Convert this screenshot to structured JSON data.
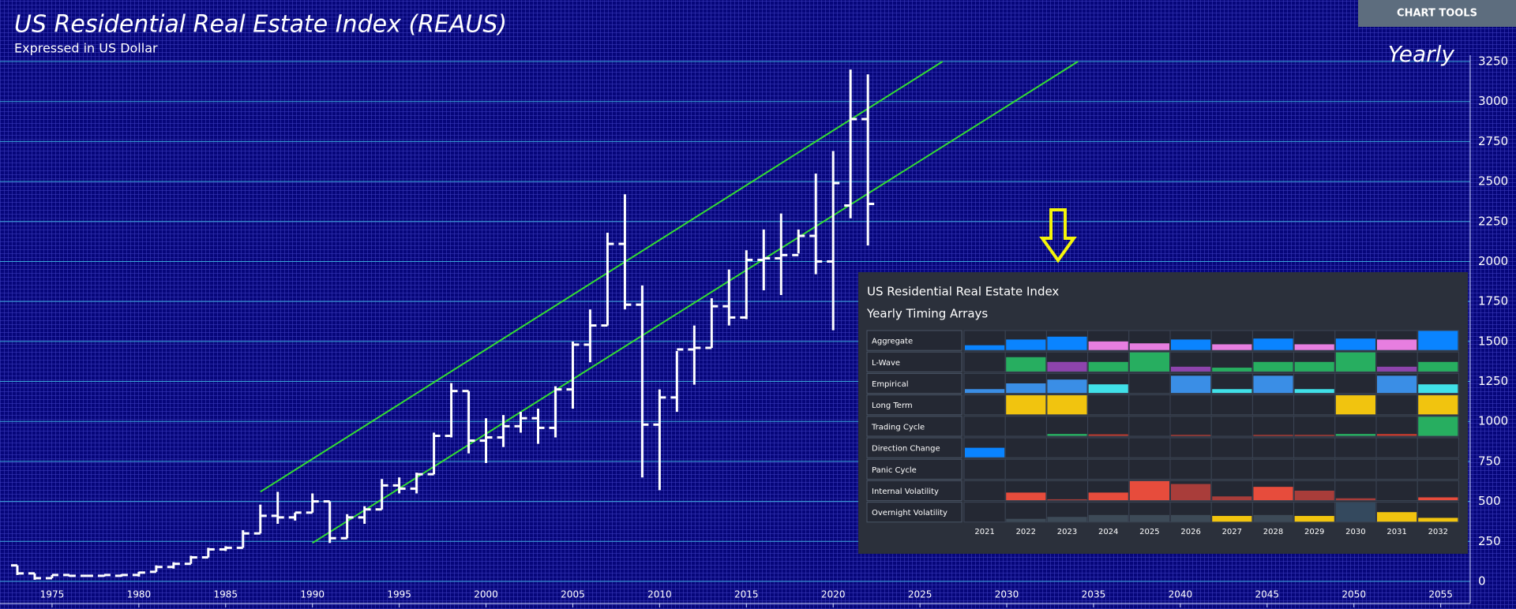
{
  "toolbar": {
    "button": "CHART TOOLS"
  },
  "chart_data": {
    "type": "ohlc",
    "title": "US Residential Real Estate Index (REAUS)",
    "subtitle": "Expressed in US Dollar",
    "timeframe": "Yearly",
    "x": [
      1973,
      1974,
      1975,
      1976,
      1977,
      1978,
      1979,
      1980,
      1981,
      1982,
      1983,
      1984,
      1985,
      1986,
      1987,
      1988,
      1989,
      1990,
      1991,
      1992,
      1993,
      1994,
      1995,
      1996,
      1997,
      1998,
      1999,
      2000,
      2001,
      2002,
      2003,
      2004,
      2005,
      2006,
      2007,
      2008,
      2009,
      2010,
      2011,
      2012,
      2013,
      2014,
      2015,
      2016,
      2017,
      2018,
      2019,
      2020,
      2021,
      2022
    ],
    "open": [
      100,
      50,
      20,
      40,
      35,
      35,
      35,
      40,
      60,
      90,
      110,
      150,
      200,
      210,
      300,
      410,
      400,
      430,
      500,
      270,
      400,
      450,
      600,
      580,
      670,
      910,
      1190,
      880,
      900,
      970,
      1020,
      960,
      1200,
      1480,
      1600,
      2110,
      1730,
      980,
      1150,
      1450,
      1460,
      1720,
      1650,
      2010,
      2020,
      2040,
      2160,
      2000,
      2350,
      2890
    ],
    "high": [
      100,
      50,
      40,
      40,
      40,
      40,
      45,
      60,
      100,
      120,
      160,
      210,
      220,
      320,
      480,
      560,
      430,
      550,
      500,
      420,
      470,
      640,
      650,
      680,
      930,
      1240,
      1190,
      1020,
      1040,
      1060,
      1080,
      1220,
      1500,
      1700,
      2180,
      2420,
      1850,
      1200,
      1440,
      1600,
      1770,
      1950,
      2070,
      2200,
      2300,
      2200,
      2550,
      2690,
      3200,
      3170
    ],
    "low": [
      40,
      10,
      20,
      30,
      30,
      30,
      30,
      30,
      60,
      80,
      110,
      150,
      190,
      210,
      300,
      360,
      380,
      430,
      240,
      270,
      360,
      450,
      550,
      550,
      670,
      900,
      800,
      740,
      840,
      930,
      860,
      900,
      1080,
      1370,
      1600,
      1700,
      650,
      570,
      1060,
      1230,
      1460,
      1600,
      1640,
      1820,
      1790,
      2050,
      1920,
      1570,
      2270,
      2100
    ],
    "close": [
      50,
      20,
      40,
      35,
      35,
      40,
      40,
      55,
      90,
      110,
      150,
      200,
      210,
      300,
      410,
      400,
      430,
      500,
      270,
      400,
      450,
      600,
      580,
      670,
      910,
      1190,
      880,
      900,
      970,
      1020,
      960,
      1200,
      1480,
      1600,
      2110,
      1730,
      980,
      1150,
      1450,
      1460,
      1720,
      1650,
      2010,
      2020,
      2040,
      2160,
      2000,
      2490,
      2890,
      2360
    ],
    "color": "#ffffff",
    "xlim": [
      1972,
      2056.7
    ],
    "xticks": [
      1975,
      1980,
      1985,
      1990,
      1995,
      2000,
      2005,
      2010,
      2015,
      2020,
      2025,
      2030,
      2035,
      2040,
      2045,
      2050,
      2055
    ],
    "ylim": [
      0,
      3250
    ],
    "yticks": [
      0,
      250,
      500,
      750,
      1000,
      1250,
      1500,
      1750,
      2000,
      2250,
      2500,
      2750,
      3000,
      3250
    ],
    "grid": true,
    "grid_color": "#3aa6d8",
    "trendlines": [
      {
        "x": [
          1987,
          2026.3
        ],
        "y": [
          560,
          3250
        ]
      },
      {
        "x": [
          1990,
          2034.1
        ],
        "y": [
          240,
          3250
        ]
      }
    ],
    "trend_color": "#33dd33"
  },
  "timing_panel": {
    "title": "US Residential Real Estate Index",
    "subtitle": "Yearly Timing Arrays",
    "years": [
      "2021",
      "2022",
      "2023",
      "2024",
      "2025",
      "2026",
      "2027",
      "2028",
      "2029",
      "2030",
      "2031",
      "2032"
    ],
    "rows": [
      {
        "label": "Aggregate",
        "values": [
          0.25,
          0.55,
          0.7,
          0.45,
          0.35,
          0.55,
          0.3,
          0.6,
          0.3,
          0.6,
          0.55,
          1.0
        ],
        "colors": [
          "#0a84ff",
          "#0a84ff",
          "#0a84ff",
          "#e77ee0",
          "#e77ee0",
          "#0a84ff",
          "#e77ee0",
          "#0a84ff",
          "#e77ee0",
          "#0a84ff",
          "#e77ee0",
          "#0a84ff"
        ]
      },
      {
        "label": "L-Wave",
        "values": [
          0,
          0.75,
          0.5,
          0.5,
          1.0,
          0.25,
          0.2,
          0.5,
          0.5,
          1.0,
          0.25,
          0.5
        ],
        "colors": [
          "#27ae60",
          "#27ae60",
          "#8e44ad",
          "#27ae60",
          "#27ae60",
          "#8e44ad",
          "#27ae60",
          "#27ae60",
          "#27ae60",
          "#27ae60",
          "#8e44ad",
          "#27ae60"
        ]
      },
      {
        "label": "Empirical",
        "values": [
          0.2,
          0.5,
          0.7,
          0.45,
          0,
          0.9,
          0.2,
          0.9,
          0.2,
          0,
          0.9,
          0.45
        ],
        "colors": [
          "#3a8ee6",
          "#3a8ee6",
          "#3a8ee6",
          "#40e0e8",
          "#3a8ee6",
          "#3a8ee6",
          "#40e0e8",
          "#3a8ee6",
          "#40e0e8",
          "#3a8ee6",
          "#3a8ee6",
          "#40e0e8"
        ]
      },
      {
        "label": "Long Term",
        "values": [
          0,
          1,
          1,
          0,
          0,
          0,
          0,
          0,
          0,
          1,
          0,
          1
        ],
        "colors": [
          "#f1c40f",
          "#f1c40f",
          "#f1c40f",
          "#f1c40f",
          "#f1c40f",
          "#f1c40f",
          "#f1c40f",
          "#f1c40f",
          "#f1c40f",
          "#f1c40f",
          "#f1c40f",
          "#f1c40f"
        ]
      },
      {
        "label": "Trading Cycle",
        "values": [
          0,
          0,
          0.1,
          0.08,
          0,
          0.05,
          0,
          0.05,
          0.05,
          0.1,
          0.1,
          1
        ],
        "colors": [
          "#27ae60",
          "#27ae60",
          "#27ae60",
          "#c0392b",
          "#c0392b",
          "#c0392b",
          "#c0392b",
          "#c0392b",
          "#c0392b",
          "#27ae60",
          "#c0392b",
          "#27ae60"
        ]
      },
      {
        "label": "Direction Change",
        "values": [
          0.5,
          0,
          0,
          0,
          0,
          0,
          0,
          0,
          0,
          0,
          0,
          0
        ],
        "colors": [
          "#0a84ff",
          "#0a84ff",
          "#0a84ff",
          "#0a84ff",
          "#0a84ff",
          "#0a84ff",
          "#0a84ff",
          "#0a84ff",
          "#0a84ff",
          "#0a84ff",
          "#0a84ff",
          "#0a84ff"
        ]
      },
      {
        "label": "Panic Cycle",
        "values": [
          0,
          0,
          0,
          0,
          0,
          0,
          0,
          0,
          0,
          0,
          0,
          0
        ],
        "colors": [
          "#e74c3c",
          "#e74c3c",
          "#e74c3c",
          "#e74c3c",
          "#e74c3c",
          "#e74c3c",
          "#e74c3c",
          "#e74c3c",
          "#e74c3c",
          "#e74c3c",
          "#e74c3c",
          "#e74c3c"
        ]
      },
      {
        "label": "Internal Volatility",
        "values": [
          0,
          0.4,
          0.05,
          0.4,
          1,
          0.85,
          0.2,
          0.7,
          0.5,
          0.1,
          0,
          0.15
        ],
        "colors": [
          "#e74c3c",
          "#e74c3c",
          "#a93d3a",
          "#e74c3c",
          "#e74c3c",
          "#a93d3a",
          "#a93d3a",
          "#e74c3c",
          "#a93d3a",
          "#a93d3a",
          "#e74c3c",
          "#e74c3c"
        ]
      },
      {
        "label": "Overnight Volatility",
        "values": [
          0,
          0.15,
          0.25,
          0.35,
          0.35,
          0.35,
          0.3,
          0.35,
          0.3,
          1.0,
          0.5,
          0.2
        ],
        "colors": [
          "#3d4a57",
          "#3d4a57",
          "#3d4a57",
          "#3d4a57",
          "#3d4a57",
          "#3d4a57",
          "#f1c40f",
          "#3d4a57",
          "#f1c40f",
          "#34495e",
          "#f1c40f",
          "#f1c40f"
        ]
      }
    ]
  }
}
